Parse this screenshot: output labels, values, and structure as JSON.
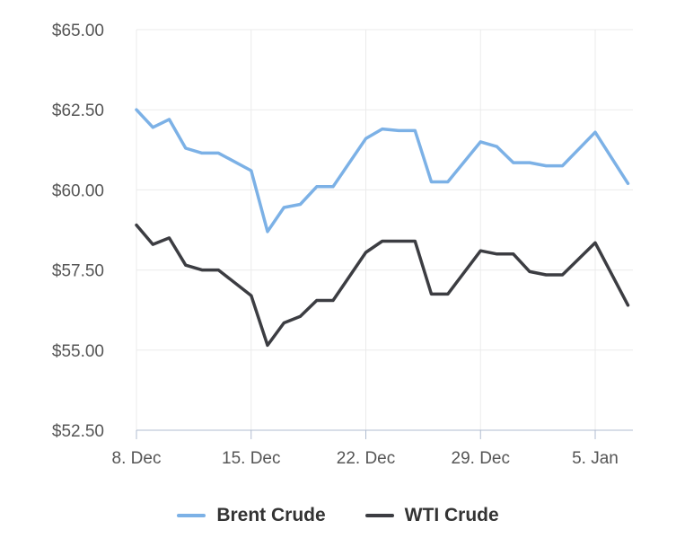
{
  "chart_data": {
    "type": "line",
    "title": "",
    "xlabel": "",
    "ylabel": "",
    "ylim": [
      52.5,
      65.0
    ],
    "y_ticks": [
      "$52.50",
      "$55.00",
      "$57.50",
      "$60.00",
      "$62.50",
      "$65.00"
    ],
    "x_ticks": [
      "8. Dec",
      "15. Dec",
      "22. Dec",
      "29. Dec",
      "5. Jan"
    ],
    "x_tick_dates": [
      "2025-12-08",
      "2025-12-15",
      "2025-12-22",
      "2025-12-29",
      "2026-01-05"
    ],
    "grid": true,
    "legend_position": "bottom-center",
    "x": [
      "2025-12-08",
      "2025-12-09",
      "2025-12-10",
      "2025-12-11",
      "2025-12-12",
      "2025-12-13",
      "2025-12-15",
      "2025-12-16",
      "2025-12-17",
      "2025-12-18",
      "2025-12-19",
      "2025-12-20",
      "2025-12-22",
      "2025-12-23",
      "2025-12-24",
      "2025-12-25",
      "2025-12-26",
      "2025-12-27",
      "2025-12-29",
      "2025-12-30",
      "2025-12-31",
      "2026-01-01",
      "2026-01-02",
      "2026-01-03",
      "2026-01-05",
      "2026-01-07"
    ],
    "series": [
      {
        "name": "Brent Crude",
        "color": "#7cb1e6",
        "values": [
          62.5,
          61.95,
          62.2,
          61.3,
          61.15,
          61.15,
          60.6,
          58.7,
          59.45,
          59.55,
          60.1,
          60.1,
          61.6,
          61.9,
          61.85,
          61.85,
          60.25,
          60.25,
          61.5,
          61.35,
          60.85,
          60.85,
          60.75,
          60.75,
          61.8,
          60.2
        ]
      },
      {
        "name": "WTI Crude",
        "color": "#3c3d42",
        "values": [
          58.9,
          58.3,
          58.5,
          57.65,
          57.5,
          57.5,
          56.7,
          55.15,
          55.85,
          56.05,
          56.55,
          56.55,
          58.05,
          58.4,
          58.4,
          58.4,
          56.75,
          56.75,
          58.1,
          58.0,
          58.0,
          57.45,
          57.35,
          57.35,
          58.35,
          56.4
        ]
      }
    ]
  }
}
